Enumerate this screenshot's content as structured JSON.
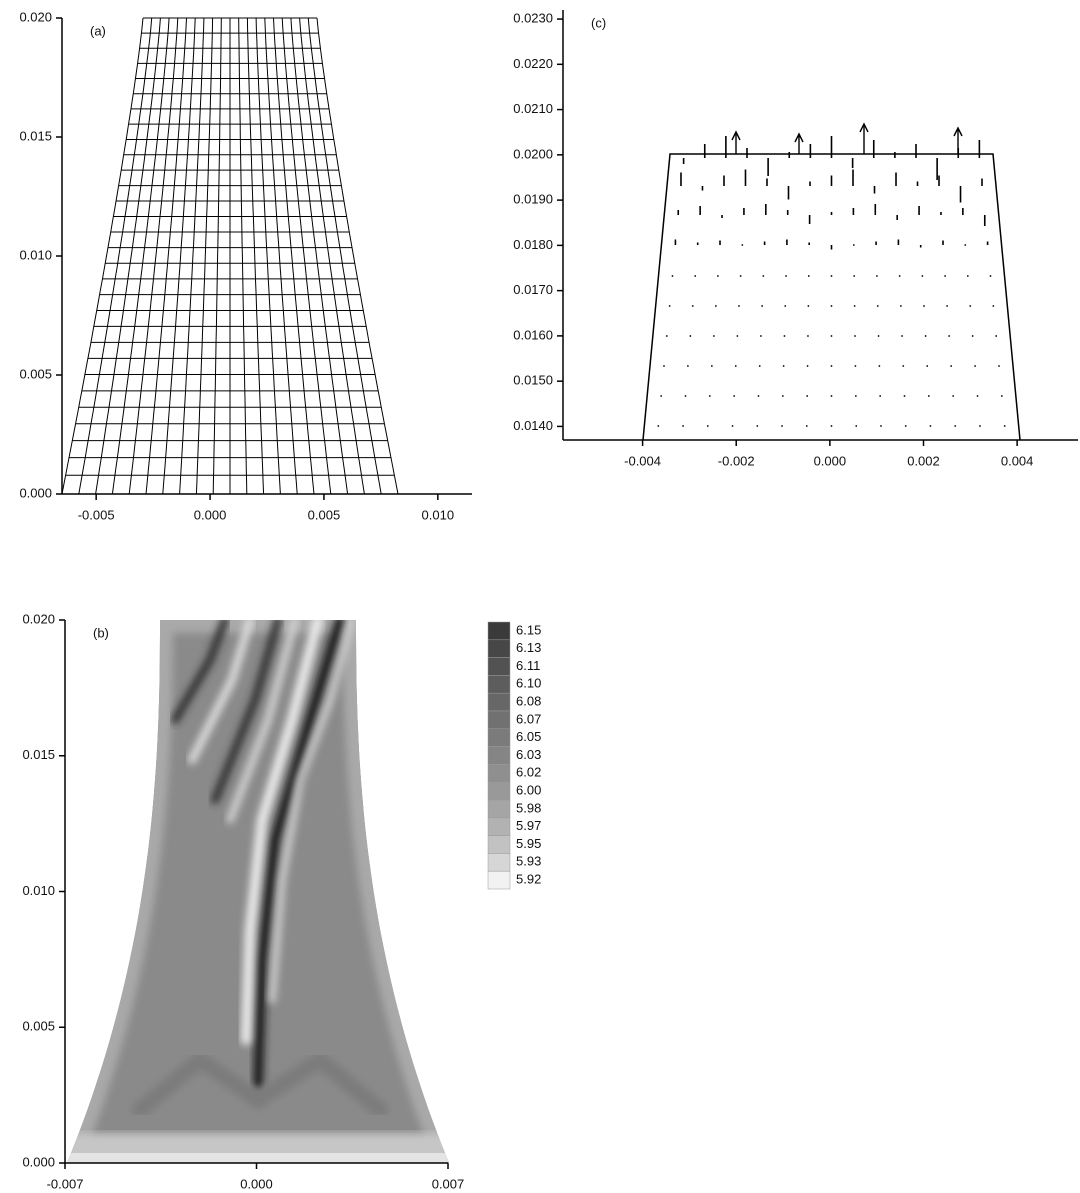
{
  "chart_data": [
    {
      "type": "mesh",
      "title": "(a)",
      "xlim": [
        -0.0065,
        0.0115
      ],
      "ylim": [
        0,
        0.02
      ],
      "xticks": [
        -0.005,
        {
          "value": 0,
          "label": "0.000"
        },
        0.005,
        {
          "value": 0.01,
          "label": "0.010"
        }
      ],
      "yticks": [
        {
          "value": 0,
          "label": "0.000"
        },
        0.005,
        {
          "value": 0.01,
          "label": "0.010"
        },
        0.015,
        {
          "value": 0.02,
          "label": "0.020"
        }
      ]
    },
    {
      "type": "contour",
      "title": "(b)",
      "xlim": [
        -0.007,
        0.007
      ],
      "ylim": [
        0,
        0.02
      ],
      "xticks": [
        -0.007,
        {
          "value": 0,
          "label": "0.000"
        },
        0.007
      ],
      "yticks": [
        {
          "value": 0,
          "label": "0.000"
        },
        0.005,
        {
          "value": 0.01,
          "label": "0.010"
        },
        0.015,
        {
          "value": 0.02,
          "label": "0.020"
        }
      ],
      "levels": [
        6.15,
        6.13,
        6.11,
        {
          "value": 6.1,
          "label": "6.10"
        },
        6.08,
        6.07,
        6.05,
        6.03,
        6.02,
        {
          "value": 6.0,
          "label": "6.00"
        },
        5.98,
        5.97,
        5.95,
        5.93,
        5.92
      ],
      "level_colors": [
        "#3a3a3a",
        "#474747",
        "#525252",
        "#5d5d5d",
        "#676767",
        "#717171",
        "#7b7b7b",
        "#858585",
        "#8f8f8f",
        "#999999",
        "#a5a5a5",
        "#b2b2b2",
        "#c2c2c2",
        "#d6d6d6",
        "#f2f2f2"
      ]
    },
    {
      "type": "vector",
      "title": "(c)",
      "xlim": [
        -0.0057,
        0.0053
      ],
      "ylim": [
        0.0137,
        0.0232
      ],
      "xticks": [
        -0.004,
        -0.002,
        {
          "value": 0,
          "label": "0.000"
        },
        0.002,
        0.004
      ],
      "yticks": [
        {
          "value": 0.014,
          "label": "0.0140"
        },
        {
          "value": 0.015,
          "label": "0.0150"
        },
        {
          "value": 0.016,
          "label": "0.0160"
        },
        {
          "value": 0.017,
          "label": "0.0170"
        },
        {
          "value": 0.018,
          "label": "0.0180"
        },
        {
          "value": 0.019,
          "label": "0.0190"
        },
        {
          "value": 0.02,
          "label": "0.0200"
        },
        {
          "value": 0.021,
          "label": "0.0210"
        },
        {
          "value": 0.022,
          "label": "0.0220"
        },
        {
          "value": 0.023,
          "label": "0.0230"
        }
      ]
    }
  ]
}
